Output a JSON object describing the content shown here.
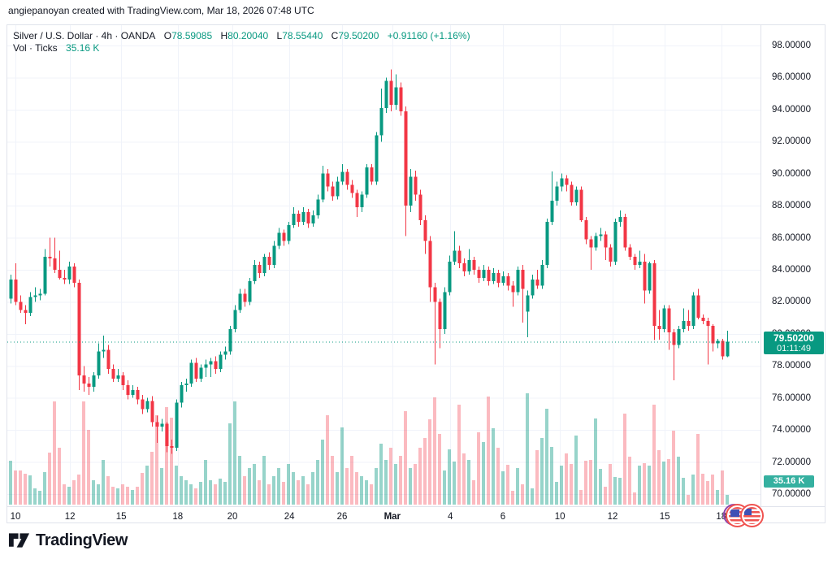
{
  "attribution": "angiepanoyan created with TradingView.com, Mar 18, 2026 07:48 UTC",
  "legend": {
    "title": "Silver / U.S. Dollar · 4h · OANDA",
    "ohlc": [
      {
        "label": "O",
        "value": "78.59085"
      },
      {
        "label": "H",
        "value": "80.20040"
      },
      {
        "label": "L",
        "value": "78.55440"
      },
      {
        "label": "C",
        "value": "79.50200"
      }
    ],
    "change": "+0.91160 (+1.16%)",
    "volume_row": {
      "label": "Vol · Ticks",
      "value": "35.16 K"
    }
  },
  "price_label": {
    "value": "79.50200",
    "countdown": "01:11:49"
  },
  "volume_label": "35.16 K",
  "logo": {
    "text": "TradingView"
  },
  "colors": {
    "up": "#089981",
    "down": "#f23645",
    "vol_up": "rgba(8,153,129,0.42)",
    "vol_down": "rgba(242,54,69,0.34)",
    "grid": "#f0f3fa",
    "text": "#131722",
    "price_line": "#089981",
    "badge_bg": "#089981",
    "vol_badge_bg": "#35b0a0",
    "border": "#e0e3eb"
  },
  "chart_data": {
    "type": "candlestick",
    "title": "Silver / U.S. Dollar",
    "exchange": "OANDA",
    "interval": "4h",
    "volume_series": "Vol · Ticks (K)",
    "current_price": 79.502,
    "countdown": "01:11:49",
    "last_volume_k": 35.16,
    "price_axis": {
      "min": 70,
      "max": 98,
      "step": 2,
      "format_decimals": 5
    },
    "grid": true,
    "time_ticks": [
      {
        "label": "10",
        "index": 1,
        "bold": false
      },
      {
        "label": "12",
        "index": 12.2,
        "bold": false
      },
      {
        "label": "15",
        "index": 22.7,
        "bold": false
      },
      {
        "label": "18",
        "index": 34.3,
        "bold": false
      },
      {
        "label": "20",
        "index": 45.5,
        "bold": false
      },
      {
        "label": "24",
        "index": 57.2,
        "bold": false
      },
      {
        "label": "26",
        "index": 68,
        "bold": false
      },
      {
        "label": "Mar",
        "index": 78.3,
        "bold": true
      },
      {
        "label": "4",
        "index": 90.2,
        "bold": false
      },
      {
        "label": "6",
        "index": 101,
        "bold": false
      },
      {
        "label": "10",
        "index": 112.7,
        "bold": false
      },
      {
        "label": "12",
        "index": 123.5,
        "bold": false
      },
      {
        "label": "15",
        "index": 134.2,
        "bold": false
      },
      {
        "label": "18",
        "index": 145.8,
        "bold": false
      }
    ],
    "candles_format": [
      "open",
      "high",
      "low",
      "close",
      "volume_k"
    ],
    "candles": [
      [
        82.2,
        83.7,
        81.9,
        83.4,
        158.2
      ],
      [
        83.4,
        84.4,
        81.8,
        82.0,
        123.1
      ],
      [
        82.0,
        82.4,
        81.3,
        81.5,
        123.1
      ],
      [
        81.5,
        81.8,
        80.6,
        81.3,
        111.3
      ],
      [
        81.3,
        82.6,
        81.1,
        82.3,
        105.5
      ],
      [
        82.3,
        82.9,
        82.0,
        82.4,
        58.6
      ],
      [
        82.4,
        82.8,
        82.1,
        82.5,
        49.8
      ],
      [
        82.5,
        85.3,
        82.4,
        84.8,
        117.2
      ],
      [
        84.8,
        86.0,
        84.2,
        84.7,
        187.5
      ],
      [
        84.7,
        86.0,
        83.8,
        84.0,
        372.1
      ],
      [
        84.0,
        85.2,
        83.4,
        83.5,
        205.1
      ],
      [
        83.5,
        84.0,
        83.1,
        83.4,
        73.3
      ],
      [
        83.4,
        84.5,
        83.1,
        84.2,
        64.5
      ],
      [
        84.2,
        84.4,
        82.9,
        83.2,
        87.9
      ],
      [
        83.2,
        83.4,
        76.5,
        77.4,
        108.4
      ],
      [
        77.4,
        78.0,
        76.4,
        76.9,
        372.1
      ],
      [
        76.9,
        77.3,
        76.2,
        76.7,
        269.6
      ],
      [
        76.7,
        77.6,
        76.4,
        77.4,
        87.9
      ],
      [
        77.4,
        79.4,
        77.2,
        78.9,
        73.3
      ],
      [
        78.9,
        79.9,
        78.5,
        79.0,
        161.2
      ],
      [
        79.0,
        79.3,
        77.5,
        77.8,
        102.6
      ],
      [
        77.8,
        78.1,
        77.0,
        77.2,
        64.5
      ],
      [
        77.2,
        77.8,
        77.0,
        77.4,
        58.6
      ],
      [
        77.4,
        77.6,
        76.5,
        76.8,
        73.3
      ],
      [
        76.8,
        77.1,
        75.9,
        76.2,
        64.5
      ],
      [
        76.2,
        76.8,
        76.0,
        76.5,
        52.7
      ],
      [
        76.5,
        76.7,
        75.6,
        75.9,
        64.5
      ],
      [
        75.9,
        76.2,
        75.0,
        75.3,
        114.3
      ],
      [
        75.3,
        76.0,
        75.1,
        75.8,
        140.6
      ],
      [
        75.8,
        76.1,
        74.2,
        74.5,
        190.5
      ],
      [
        74.5,
        74.9,
        73.2,
        74.2,
        322.3
      ],
      [
        74.2,
        74.7,
        73.9,
        74.4,
        131.9
      ],
      [
        74.4,
        74.5,
        72.6,
        73.0,
        351.6
      ],
      [
        73.0,
        73.4,
        72.5,
        72.9,
        313.5
      ],
      [
        72.9,
        75.9,
        72.7,
        75.7,
        140.6
      ],
      [
        75.7,
        77.0,
        75.4,
        76.8,
        102.6
      ],
      [
        76.8,
        77.2,
        76.4,
        76.9,
        87.9
      ],
      [
        76.9,
        78.4,
        76.7,
        78.2,
        73.3
      ],
      [
        78.2,
        78.5,
        77.0,
        77.2,
        58.6
      ],
      [
        77.2,
        78.1,
        77.0,
        77.9,
        82.0
      ],
      [
        77.9,
        78.4,
        77.3,
        78.1,
        161.2
      ],
      [
        78.1,
        78.5,
        77.3,
        78.3,
        87.9
      ],
      [
        78.3,
        78.6,
        77.5,
        77.8,
        73.3
      ],
      [
        77.8,
        78.9,
        77.6,
        78.7,
        93.8
      ],
      [
        78.7,
        79.2,
        78.4,
        78.9,
        82.0
      ],
      [
        78.9,
        80.5,
        78.7,
        80.3,
        293.0
      ],
      [
        80.3,
        81.8,
        80.1,
        81.5,
        372.1
      ],
      [
        81.5,
        82.8,
        81.3,
        82.5,
        175.8
      ],
      [
        82.5,
        82.8,
        81.7,
        82.0,
        102.6
      ],
      [
        82.0,
        83.5,
        81.8,
        83.3,
        131.9
      ],
      [
        83.3,
        84.6,
        83.1,
        84.3,
        146.5
      ],
      [
        84.3,
        84.5,
        83.5,
        83.8,
        87.9
      ],
      [
        83.8,
        85.0,
        83.6,
        84.8,
        175.8
      ],
      [
        84.8,
        85.1,
        84.0,
        84.3,
        73.3
      ],
      [
        84.3,
        85.8,
        84.1,
        85.5,
        102.6
      ],
      [
        85.5,
        86.6,
        85.3,
        86.3,
        131.9
      ],
      [
        86.3,
        86.5,
        85.5,
        85.8,
        82.0
      ],
      [
        85.8,
        87.0,
        85.6,
        86.8,
        146.5
      ],
      [
        86.8,
        87.9,
        86.6,
        87.5,
        117.2
      ],
      [
        87.5,
        87.7,
        86.7,
        87.0,
        87.9
      ],
      [
        87.0,
        87.9,
        86.8,
        87.6,
        102.6
      ],
      [
        87.6,
        87.8,
        86.6,
        86.9,
        73.3
      ],
      [
        86.9,
        87.7,
        86.7,
        87.4,
        117.2
      ],
      [
        87.4,
        88.7,
        87.2,
        88.4,
        161.2
      ],
      [
        88.4,
        90.5,
        88.2,
        90.0,
        234.4
      ],
      [
        90.0,
        90.3,
        88.9,
        89.2,
        322.3
      ],
      [
        89.2,
        89.5,
        88.3,
        88.6,
        175.8
      ],
      [
        88.6,
        89.8,
        88.4,
        89.5,
        117.2
      ],
      [
        89.5,
        90.6,
        89.3,
        90.1,
        278.4
      ],
      [
        90.1,
        90.3,
        89.0,
        89.3,
        131.9
      ],
      [
        89.3,
        89.6,
        88.5,
        88.8,
        175.8
      ],
      [
        88.8,
        89.0,
        87.3,
        87.9,
        117.2
      ],
      [
        87.9,
        88.9,
        87.6,
        88.7,
        102.6
      ],
      [
        88.7,
        90.6,
        88.5,
        90.4,
        87.9
      ],
      [
        90.4,
        90.6,
        89.3,
        89.5,
        73.3
      ],
      [
        89.5,
        92.6,
        89.3,
        92.4,
        131.9
      ],
      [
        92.4,
        95.3,
        92.0,
        94.1,
        219.8
      ],
      [
        94.1,
        96.0,
        93.8,
        95.8,
        161.2
      ],
      [
        95.8,
        96.5,
        93.9,
        94.3,
        205.1
      ],
      [
        94.3,
        96.2,
        94.0,
        95.4,
        146.5
      ],
      [
        95.4,
        95.7,
        93.6,
        93.9,
        175.8
      ],
      [
        93.9,
        94.2,
        86.1,
        88.0,
        337.0
      ],
      [
        88.0,
        90.3,
        87.6,
        89.8,
        131.9
      ],
      [
        89.8,
        90.2,
        88.3,
        88.7,
        146.5
      ],
      [
        88.7,
        89.0,
        86.8,
        87.1,
        205.1
      ],
      [
        87.1,
        87.4,
        85.0,
        85.8,
        240.3
      ],
      [
        85.8,
        86.1,
        82.0,
        82.9,
        307.7
      ],
      [
        82.9,
        83.2,
        78.1,
        82.0,
        386.8
      ],
      [
        82.0,
        82.2,
        79.1,
        80.3,
        254.9
      ],
      [
        80.3,
        82.9,
        80.0,
        82.6,
        123.1
      ],
      [
        82.6,
        84.9,
        82.4,
        84.5,
        199.2
      ],
      [
        84.5,
        86.4,
        84.3,
        85.2,
        155.3
      ],
      [
        85.2,
        85.5,
        84.1,
        84.4,
        360.4
      ],
      [
        84.4,
        84.7,
        83.6,
        83.9,
        184.6
      ],
      [
        83.9,
        85.3,
        83.7,
        84.6,
        161.2
      ],
      [
        84.6,
        84.8,
        83.7,
        84.0,
        87.9
      ],
      [
        84.0,
        84.2,
        83.2,
        83.5,
        260.8
      ],
      [
        83.5,
        84.3,
        83.3,
        84.0,
        225.6
      ],
      [
        84.0,
        84.2,
        83.0,
        83.3,
        389.7
      ],
      [
        83.3,
        84.1,
        83.1,
        83.8,
        275.4
      ],
      [
        83.8,
        84.0,
        82.9,
        83.2,
        205.1
      ],
      [
        83.2,
        83.9,
        83.0,
        83.6,
        120.1
      ],
      [
        83.6,
        83.8,
        82.7,
        83.0,
        143.6
      ],
      [
        83.0,
        83.3,
        81.7,
        82.6,
        49.8
      ],
      [
        82.6,
        84.2,
        82.4,
        84.0,
        131.9
      ],
      [
        84.0,
        84.3,
        80.7,
        82.8,
        73.3
      ],
      [
        81.4,
        82.7,
        79.8,
        82.4,
        401.4
      ],
      [
        82.4,
        83.7,
        82.2,
        83.4,
        58.6
      ],
      [
        83.4,
        84.0,
        82.8,
        83.0,
        196.3
      ],
      [
        83.0,
        84.6,
        82.8,
        84.3,
        240.3
      ],
      [
        84.3,
        87.2,
        84.1,
        87.0,
        345.7
      ],
      [
        87.0,
        90.15,
        86.8,
        88.3,
        208.0
      ],
      [
        88.3,
        89.5,
        88.0,
        89.2,
        82.0
      ],
      [
        89.2,
        90.0,
        88.9,
        89.7,
        140.6
      ],
      [
        89.7,
        89.9,
        88.9,
        89.3,
        184.6
      ],
      [
        89.3,
        89.5,
        88.0,
        88.2,
        146.5
      ],
      [
        88.2,
        89.2,
        88.0,
        89.0,
        249.1
      ],
      [
        89.0,
        89.2,
        87.0,
        87.1,
        52.7
      ],
      [
        87.1,
        87.3,
        85.6,
        85.9,
        158.2
      ],
      [
        85.9,
        86.1,
        84.0,
        85.4,
        161.2
      ],
      [
        85.4,
        86.3,
        85.2,
        86.1,
        310.6
      ],
      [
        86.1,
        86.6,
        85.8,
        86.2,
        128.9
      ],
      [
        86.2,
        86.4,
        84.6,
        85.4,
        64.5
      ],
      [
        85.4,
        85.6,
        84.2,
        84.5,
        146.5
      ],
      [
        84.5,
        87.2,
        84.3,
        87.0,
        99.6
      ],
      [
        87.0,
        87.7,
        86.7,
        87.3,
        96.7
      ],
      [
        87.3,
        87.5,
        85.2,
        85.4,
        328.2
      ],
      [
        85.4,
        85.6,
        84.6,
        84.8,
        172.9
      ],
      [
        84.8,
        85.0,
        84.0,
        84.3,
        44.0
      ],
      [
        84.3,
        85.2,
        84.1,
        84.5,
        140.6
      ],
      [
        84.5,
        85.0,
        81.9,
        82.7,
        149.4
      ],
      [
        82.7,
        84.5,
        82.5,
        84.4,
        140.6
      ],
      [
        84.4,
        84.6,
        79.6,
        80.5,
        360.4
      ],
      [
        80.5,
        81.5,
        79.65,
        80.3,
        196.3
      ],
      [
        80.3,
        81.8,
        80.1,
        81.6,
        155.3
      ],
      [
        81.6,
        81.8,
        79.0,
        80.1,
        164.1
      ],
      [
        80.1,
        80.3,
        77.1,
        79.3,
        266.6
      ],
      [
        79.3,
        80.5,
        79.1,
        80.3,
        172.9
      ],
      [
        80.3,
        81.6,
        80.1,
        80.8,
        96.7
      ],
      [
        80.8,
        81.5,
        80.2,
        80.5,
        35.2
      ],
      [
        80.5,
        82.6,
        80.3,
        82.4,
        108.4
      ],
      [
        82.4,
        82.8,
        80.9,
        81.0,
        254.9
      ],
      [
        81.0,
        81.2,
        80.6,
        80.8,
        111.3
      ],
      [
        80.8,
        81.0,
        78.1,
        80.5,
        85.0
      ],
      [
        80.5,
        80.6,
        78.9,
        79.4,
        108.4
      ],
      [
        79.4,
        79.7,
        79.1,
        79.55,
        52.7
      ],
      [
        79.55,
        79.7,
        78.4,
        78.59,
        123.1
      ],
      [
        78.59,
        80.2,
        78.55,
        79.5,
        35.2
      ]
    ]
  }
}
